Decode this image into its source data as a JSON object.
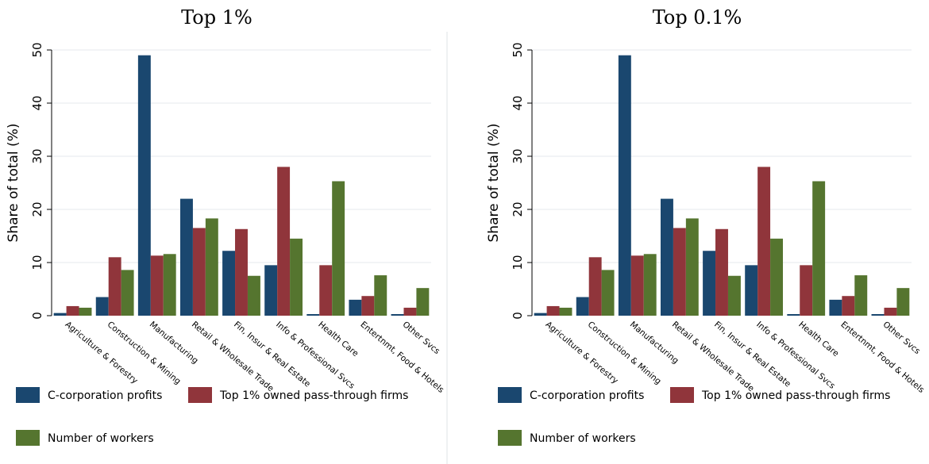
{
  "chart_data": [
    {
      "type": "bar",
      "title": "Top 1%",
      "ylabel": "Share of total (%)",
      "xlabel": "",
      "ylim": [
        0,
        50
      ],
      "yticks": [
        0,
        10,
        20,
        30,
        40,
        50
      ],
      "grid": true,
      "legend": "bottom",
      "categories": [
        "Agriculture & Forestry",
        "Construction & Mining",
        "Manufacturing",
        "Retail & Wholesale Trade",
        "Fin, Insur & Real Estate",
        "Info & Professional Svcs",
        "Health Care",
        "Entertnmt, Food & Hotels",
        "Other Svcs"
      ],
      "series": [
        {
          "name": "C-corporation profits",
          "color": "#1a476f",
          "values": [
            0.5,
            3.5,
            49.0,
            22.0,
            12.2,
            9.5,
            0.3,
            3.0,
            0.3
          ]
        },
        {
          "name": "Top 1% owned pass-through firms",
          "color": "#90353b",
          "values": [
            1.8,
            11.0,
            11.3,
            16.5,
            16.3,
            28.0,
            9.5,
            3.7,
            1.5
          ]
        },
        {
          "name": "Number of workers",
          "color": "#55752f",
          "values": [
            1.5,
            8.6,
            11.6,
            18.3,
            7.5,
            14.5,
            25.3,
            7.6,
            5.2
          ]
        }
      ]
    },
    {
      "type": "bar",
      "title": "Top 0.1%",
      "ylabel": "Share of total (%)",
      "xlabel": "",
      "ylim": [
        0,
        50
      ],
      "yticks": [
        0,
        10,
        20,
        30,
        40,
        50
      ],
      "grid": true,
      "legend": "bottom",
      "categories": [
        "Agriculture & Forestry",
        "Construction & Mining",
        "Manufacturing",
        "Retail & Wholesale Trade",
        "Fin, Insur & Real Estate",
        "Info & Professional Svcs",
        "Health Care",
        "Entertnmt, Food & Hotels",
        "Other Svcs"
      ],
      "series": [
        {
          "name": "C-corporation profits",
          "color": "#1a476f",
          "values": [
            0.5,
            3.5,
            49.0,
            22.0,
            12.2,
            9.5,
            0.3,
            3.0,
            0.3
          ]
        },
        {
          "name": "Top 1% owned pass-through firms",
          "color": "#90353b",
          "values": [
            1.8,
            11.0,
            11.3,
            16.5,
            16.3,
            28.0,
            9.5,
            3.7,
            1.5
          ]
        },
        {
          "name": "Number of workers",
          "color": "#55752f",
          "values": [
            1.5,
            8.6,
            11.6,
            18.3,
            7.5,
            14.5,
            25.3,
            7.6,
            5.2
          ]
        }
      ]
    }
  ]
}
